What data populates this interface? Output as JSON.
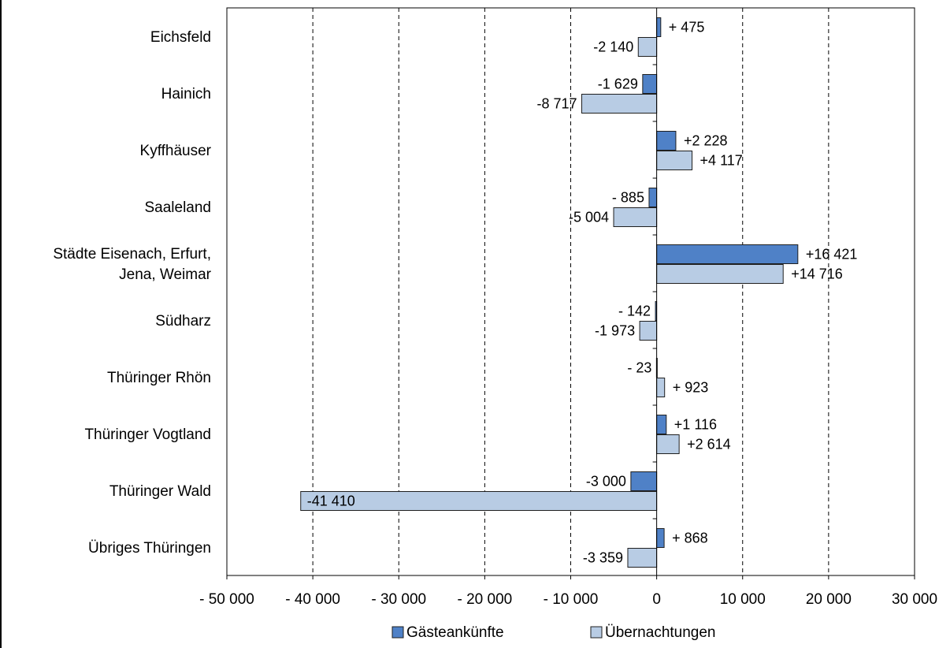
{
  "chart_data": {
    "type": "bar",
    "orientation": "horizontal",
    "categories": [
      [
        "Eichsfeld"
      ],
      [
        "Hainich"
      ],
      [
        "Kyffhäuser"
      ],
      [
        "Saaleland"
      ],
      [
        "Städte Eisenach, Erfurt,",
        "Jena, Weimar"
      ],
      [
        "Südharz"
      ],
      [
        "Thüringer Rhön"
      ],
      [
        "Thüringer Vogtland"
      ],
      [
        "Thüringer Wald"
      ],
      [
        "Übriges Thüringen"
      ]
    ],
    "series": [
      {
        "name": "Gästeankünfte",
        "color": "#4F81C7",
        "values": [
          475,
          -1629,
          2228,
          -885,
          16421,
          -142,
          -23,
          1116,
          -3000,
          868
        ],
        "labels": [
          "+ 475",
          "-1 629",
          "+2 228",
          "- 885",
          "+16 421",
          "- 142",
          "- 23",
          "+1 116",
          "-3 000",
          "+ 868"
        ]
      },
      {
        "name": "Übernachtungen",
        "color": "#B8CCE4",
        "values": [
          -2140,
          -8717,
          4117,
          -5004,
          14716,
          -1973,
          923,
          2614,
          -41410,
          -3359
        ],
        "labels": [
          "-2 140",
          "-8 717",
          "+4 117",
          "-5 004",
          "+14 716",
          "-1 973",
          "+ 923",
          "+2 614",
          "-41 410",
          "-3 359"
        ]
      }
    ],
    "xlim": [
      -50000,
      30000
    ],
    "xticks": [
      -50000,
      -40000,
      -30000,
      -20000,
      -10000,
      0,
      10000,
      20000,
      30000
    ],
    "xtick_labels": [
      "- 50 000",
      "- 40 000",
      "- 30 000",
      "- 20 000",
      "- 10 000",
      "0",
      "10 000",
      "20 000",
      "30 000"
    ],
    "grid": "vertical dashed",
    "legend_position": "bottom"
  }
}
